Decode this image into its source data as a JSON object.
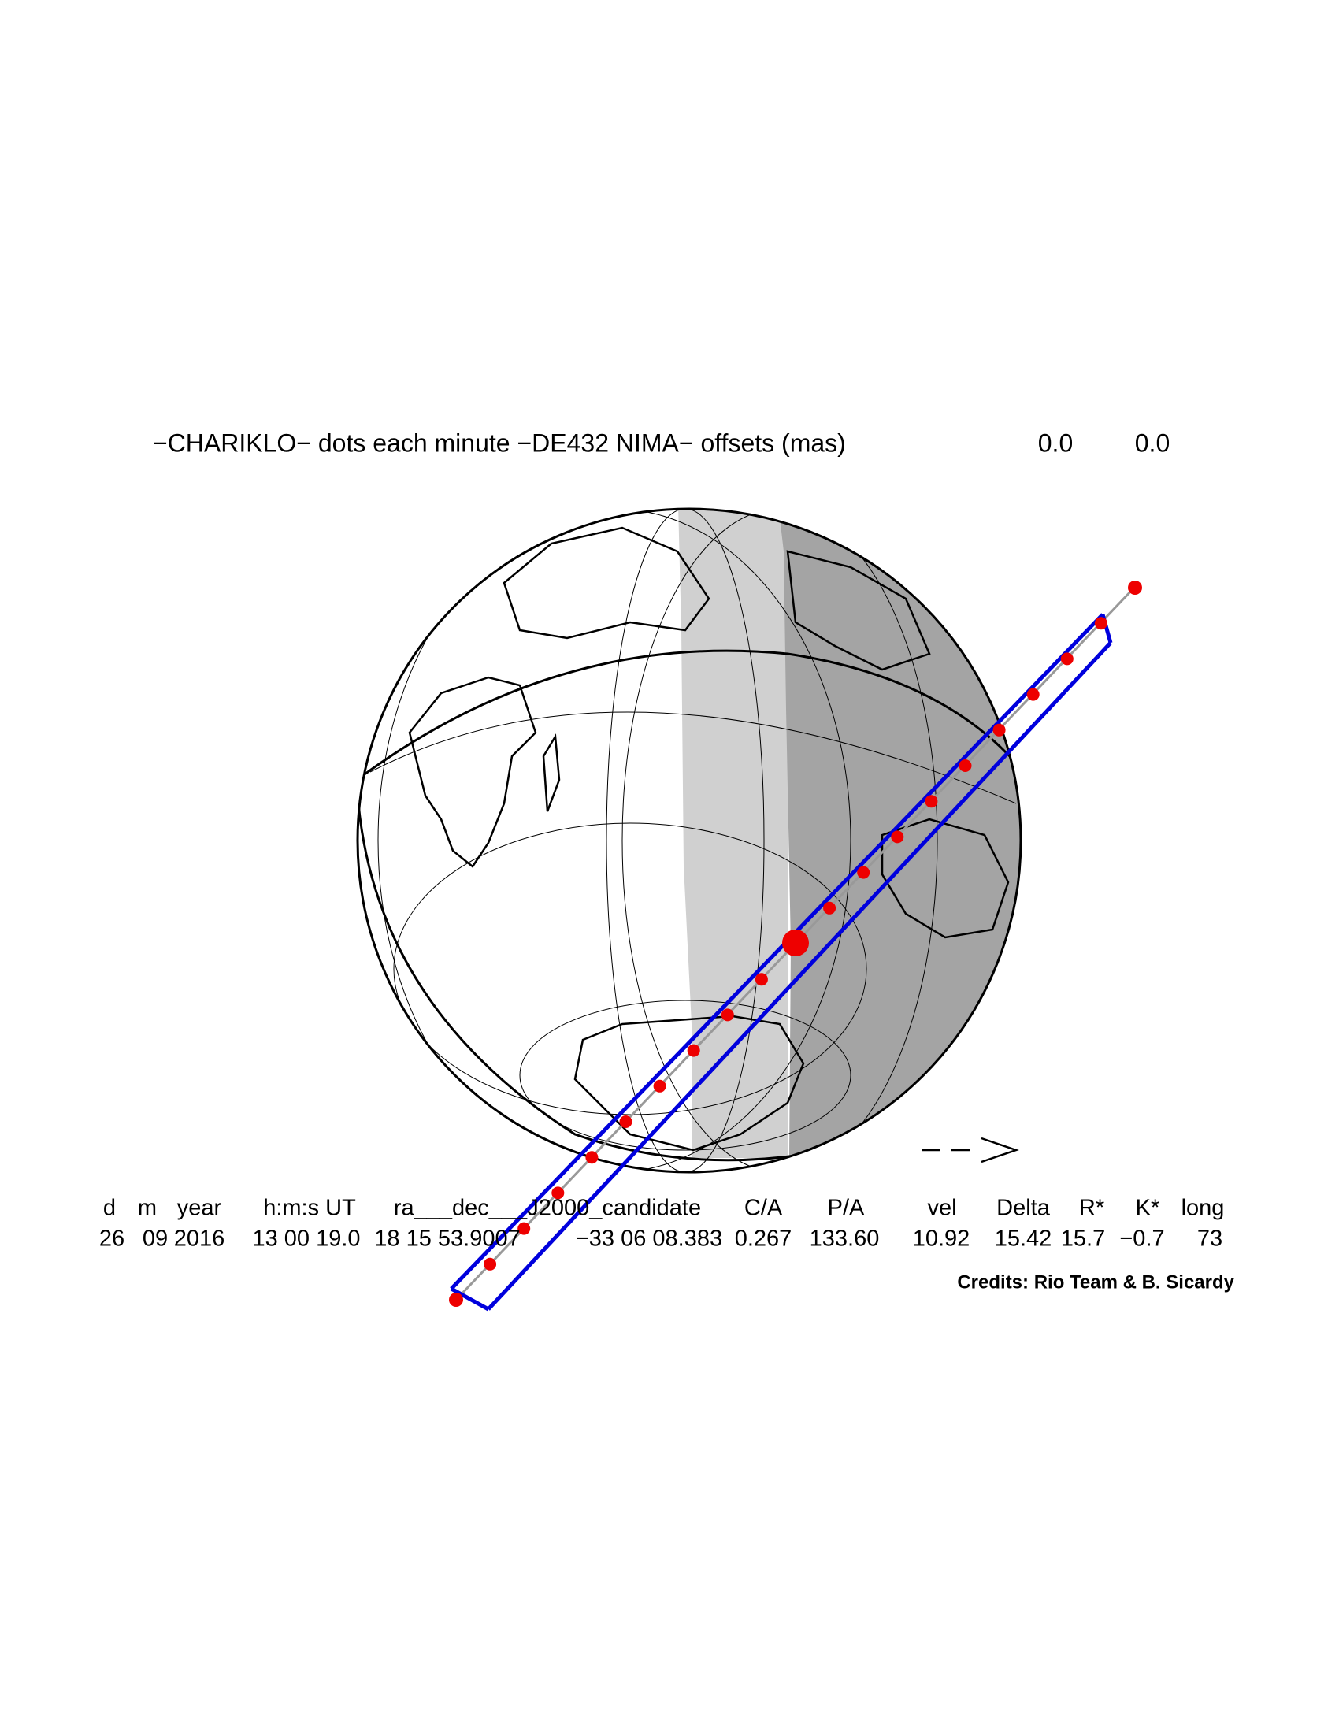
{
  "header": {
    "title": "−CHARIKLO− dots each minute −DE432 NIMA− offsets (mas)",
    "offsets": [
      "0.0",
      "0.0"
    ]
  },
  "table": {
    "columns": [
      "d",
      "m",
      "year",
      "h:m:s UT",
      "ra___dec___J2000_candidate",
      "C/A",
      "P/A",
      "vel",
      "Delta",
      "R*",
      "K*",
      "long"
    ],
    "values": [
      "26",
      "09",
      "2016",
      "13 00 19.0",
      "18 15 53.9007",
      "−33 06 08.383",
      "0.267",
      "133.60",
      "10.92",
      "15.42",
      "15.7",
      "−0.7",
      "73"
    ]
  },
  "credits": "Credits: Rio Team & B. Sicardy"
}
